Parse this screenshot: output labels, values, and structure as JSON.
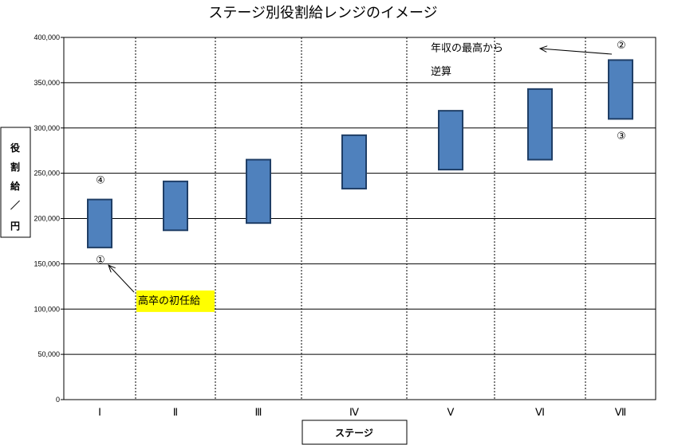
{
  "chart_data": {
    "type": "floating-bar",
    "title": "ステージ別役割給レンジのイメージ",
    "xlabel": "ステージ",
    "ylabel_chars": [
      "役",
      "割",
      "給",
      "／",
      "円"
    ],
    "categories": [
      "Ⅰ",
      "Ⅱ",
      "Ⅲ",
      "Ⅳ",
      "Ⅴ",
      "Ⅵ",
      "Ⅶ"
    ],
    "series": [
      {
        "low": [
          168000,
          187000,
          195000,
          233000,
          254000,
          265000,
          310000
        ],
        "high": [
          221000,
          241000,
          265000,
          292000,
          319000,
          343000,
          375000
        ]
      }
    ],
    "ylim": [
      0,
      400000
    ],
    "yticks": [
      0,
      50000,
      100000,
      150000,
      200000,
      250000,
      300000,
      350000,
      400000
    ],
    "ytick_labels": [
      "0",
      "50,000",
      "100,000",
      "150,000",
      "200,000",
      "250,000",
      "300,000",
      "350,000",
      "400,000"
    ],
    "bar_color": "#4F81BD",
    "bar_border": "#1F3E66",
    "highlight_color": "#FFFF00",
    "annotations": [
      {
        "text": "④",
        "category": 0,
        "y": 243000
      },
      {
        "text": "①",
        "category": 0,
        "y": 155000
      },
      {
        "text": "②",
        "category": 6,
        "y": 392000
      },
      {
        "text": "③",
        "category": 6,
        "y": 292000
      },
      {
        "text": "高卒の初任給",
        "category": 1,
        "y": 110000,
        "highlight": true
      },
      {
        "text": "年収の最高から",
        "category": 4,
        "y": 390000
      },
      {
        "text": "逆算",
        "category": 4,
        "y": 364000
      }
    ]
  }
}
